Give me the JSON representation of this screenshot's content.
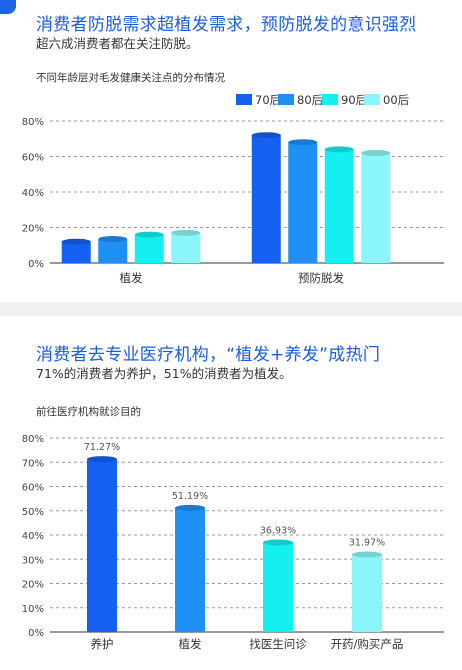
{
  "section1": {
    "title": "消费者防脱需求超植发需求，预防脱发的意识强烈",
    "subtitle": "超六成消费者都在关注防脱。",
    "chart_title": "不同年龄层对毛发健康关注点的分布情况"
  },
  "section2": {
    "title": "消费者去专业医疗机构，“植发+养发”成热门",
    "subtitle": "71%的消费者为养护，51%的消费者为植发。",
    "chart_title": "前往医疗机构就诊目的"
  },
  "chart_data": [
    {
      "type": "bar",
      "title": "不同年龄层对毛发健康关注点的分布情况",
      "categories": [
        "植发",
        "预防脱发"
      ],
      "series": [
        {
          "name": "70后",
          "values": [
            12,
            72
          ],
          "color": "#1560f0"
        },
        {
          "name": "80后",
          "values": [
            13.5,
            68
          ],
          "color": "#1e8ff5"
        },
        {
          "name": "90后",
          "values": [
            16,
            64
          ],
          "color": "#14f0f0"
        },
        {
          "name": "00后",
          "values": [
            17,
            62
          ],
          "color": "#8af6fb"
        }
      ],
      "ylim": [
        0,
        80
      ],
      "yticks": [
        "0%",
        "20%",
        "40%",
        "60%",
        "80%"
      ],
      "grid": true,
      "legend": "top-right"
    },
    {
      "type": "bar",
      "title": "前往医疗机构就诊目的",
      "categories": [
        "养护",
        "植发",
        "找医生问诊",
        "开药/购买产品"
      ],
      "values": [
        71.27,
        51.19,
        36.93,
        31.97
      ],
      "value_labels": [
        "71.27%",
        "51.19%",
        "36.93%",
        "31.97%"
      ],
      "colors": [
        "#1560f0",
        "#1e8ff5",
        "#14f0f0",
        "#8af6fb"
      ],
      "ylim": [
        0,
        80
      ],
      "yticks": [
        "0%",
        "10%",
        "20%",
        "30%",
        "40%",
        "50%",
        "60%",
        "70%",
        "80%"
      ],
      "grid": true
    }
  ]
}
